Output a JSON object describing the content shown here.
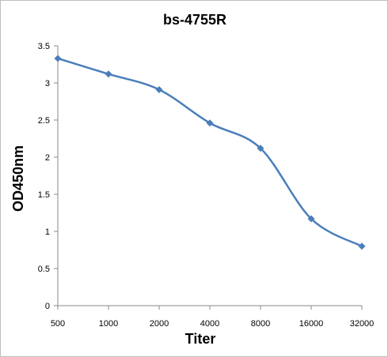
{
  "chart_data": {
    "type": "line",
    "title": "bs-4755R",
    "xlabel": "Titer",
    "ylabel": "OD450nm",
    "categories": [
      "500",
      "1000",
      "2000",
      "4000",
      "8000",
      "16000",
      "32000"
    ],
    "series": [
      {
        "values": [
          3.33,
          3.12,
          2.91,
          2.46,
          2.12,
          1.17,
          0.8
        ],
        "color": "#4a7ebb"
      }
    ],
    "yticks": [
      "0",
      "0.5",
      "1",
      "1.5",
      "2",
      "2.5",
      "3",
      "3.5"
    ],
    "ylim": [
      0,
      3.5
    ],
    "grid": false,
    "legend": "none",
    "marker": "diamond",
    "smooth": true
  }
}
